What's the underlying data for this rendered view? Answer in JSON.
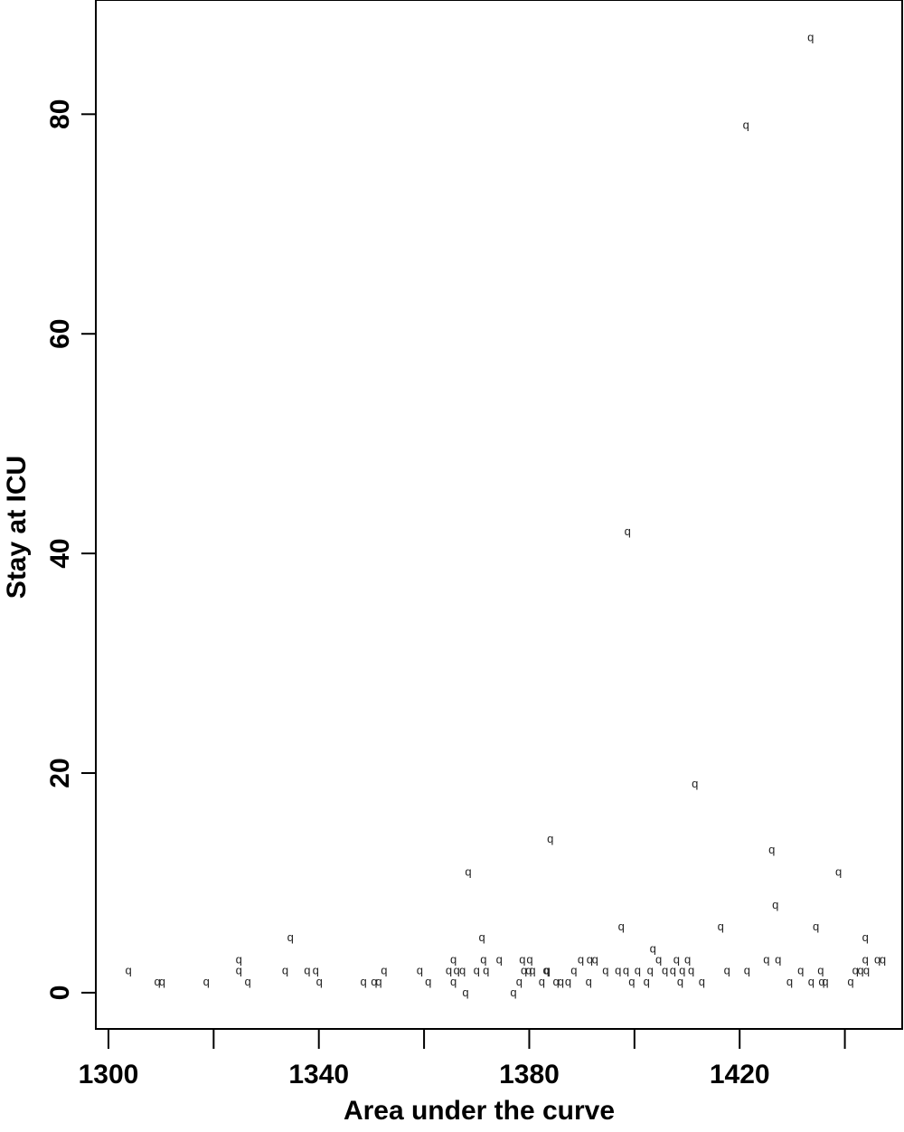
{
  "chart_data": {
    "type": "scatter",
    "title": "",
    "xlabel": "Area under the curve",
    "ylabel": "Stay at ICU",
    "xlim": [
      1297.6,
      1450.9
    ],
    "ylim": [
      -3.3,
      90.4
    ],
    "x_ticks": [
      1300,
      1340,
      1380,
      1420
    ],
    "x_minor_ticks": [
      1320,
      1360,
      1400,
      1440
    ],
    "y_ticks": [
      0,
      20,
      40,
      60,
      80
    ],
    "grid": false,
    "legend": "none",
    "marker": "q",
    "color": "#222222",
    "points": [
      {
        "x": 1303.8,
        "y": 2
      },
      {
        "x": 1309.3,
        "y": 1
      },
      {
        "x": 1310.2,
        "y": 1
      },
      {
        "x": 1318.6,
        "y": 1
      },
      {
        "x": 1324.8,
        "y": 3
      },
      {
        "x": 1324.8,
        "y": 2
      },
      {
        "x": 1326.5,
        "y": 1
      },
      {
        "x": 1333.6,
        "y": 2
      },
      {
        "x": 1334.6,
        "y": 5
      },
      {
        "x": 1337.8,
        "y": 2
      },
      {
        "x": 1339.4,
        "y": 2
      },
      {
        "x": 1340.1,
        "y": 1
      },
      {
        "x": 1348.5,
        "y": 1
      },
      {
        "x": 1350.5,
        "y": 1
      },
      {
        "x": 1351.4,
        "y": 1
      },
      {
        "x": 1352.4,
        "y": 2
      },
      {
        "x": 1359.2,
        "y": 2
      },
      {
        "x": 1360.8,
        "y": 1
      },
      {
        "x": 1364.7,
        "y": 2
      },
      {
        "x": 1365.6,
        "y": 3
      },
      {
        "x": 1365.6,
        "y": 1
      },
      {
        "x": 1366.2,
        "y": 2
      },
      {
        "x": 1367.3,
        "y": 2
      },
      {
        "x": 1367.9,
        "y": 0
      },
      {
        "x": 1368.4,
        "y": 11
      },
      {
        "x": 1370.0,
        "y": 2
      },
      {
        "x": 1371.0,
        "y": 5
      },
      {
        "x": 1371.3,
        "y": 3
      },
      {
        "x": 1371.8,
        "y": 2
      },
      {
        "x": 1374.3,
        "y": 3
      },
      {
        "x": 1377.0,
        "y": 0
      },
      {
        "x": 1378.1,
        "y": 1
      },
      {
        "x": 1378.7,
        "y": 3
      },
      {
        "x": 1379.0,
        "y": 2
      },
      {
        "x": 1379.9,
        "y": 2
      },
      {
        "x": 1380.1,
        "y": 3
      },
      {
        "x": 1380.6,
        "y": 2
      },
      {
        "x": 1382.4,
        "y": 1
      },
      {
        "x": 1383.2,
        "y": 2
      },
      {
        "x": 1383.4,
        "y": 2
      },
      {
        "x": 1384.0,
        "y": 14
      },
      {
        "x": 1385.1,
        "y": 1
      },
      {
        "x": 1386.0,
        "y": 1
      },
      {
        "x": 1387.4,
        "y": 1
      },
      {
        "x": 1388.5,
        "y": 2
      },
      {
        "x": 1389.8,
        "y": 3
      },
      {
        "x": 1391.3,
        "y": 1
      },
      {
        "x": 1391.5,
        "y": 3
      },
      {
        "x": 1392.5,
        "y": 3
      },
      {
        "x": 1394.5,
        "y": 2
      },
      {
        "x": 1396.9,
        "y": 2
      },
      {
        "x": 1397.5,
        "y": 6
      },
      {
        "x": 1398.4,
        "y": 2
      },
      {
        "x": 1398.7,
        "y": 42
      },
      {
        "x": 1399.5,
        "y": 1
      },
      {
        "x": 1400.6,
        "y": 2
      },
      {
        "x": 1402.3,
        "y": 1
      },
      {
        "x": 1403.0,
        "y": 2
      },
      {
        "x": 1403.5,
        "y": 4
      },
      {
        "x": 1404.6,
        "y": 3
      },
      {
        "x": 1405.8,
        "y": 2
      },
      {
        "x": 1407.3,
        "y": 2
      },
      {
        "x": 1408.0,
        "y": 3
      },
      {
        "x": 1408.7,
        "y": 1
      },
      {
        "x": 1409.1,
        "y": 2
      },
      {
        "x": 1410.1,
        "y": 3
      },
      {
        "x": 1410.8,
        "y": 2
      },
      {
        "x": 1411.5,
        "y": 19
      },
      {
        "x": 1412.8,
        "y": 1
      },
      {
        "x": 1416.4,
        "y": 6
      },
      {
        "x": 1417.6,
        "y": 2
      },
      {
        "x": 1421.2,
        "y": 79
      },
      {
        "x": 1421.4,
        "y": 2
      },
      {
        "x": 1425.1,
        "y": 3
      },
      {
        "x": 1426.1,
        "y": 13
      },
      {
        "x": 1426.8,
        "y": 8
      },
      {
        "x": 1427.3,
        "y": 3
      },
      {
        "x": 1429.5,
        "y": 1
      },
      {
        "x": 1431.6,
        "y": 2
      },
      {
        "x": 1433.5,
        "y": 87
      },
      {
        "x": 1433.6,
        "y": 1
      },
      {
        "x": 1434.5,
        "y": 6
      },
      {
        "x": 1435.4,
        "y": 2
      },
      {
        "x": 1435.6,
        "y": 1
      },
      {
        "x": 1436.3,
        "y": 1
      },
      {
        "x": 1438.8,
        "y": 11
      },
      {
        "x": 1441.1,
        "y": 1
      },
      {
        "x": 1442.0,
        "y": 2
      },
      {
        "x": 1443.0,
        "y": 2
      },
      {
        "x": 1443.9,
        "y": 5
      },
      {
        "x": 1443.9,
        "y": 3
      },
      {
        "x": 1444.1,
        "y": 2
      },
      {
        "x": 1446.2,
        "y": 3
      },
      {
        "x": 1447.2,
        "y": 3
      }
    ]
  }
}
